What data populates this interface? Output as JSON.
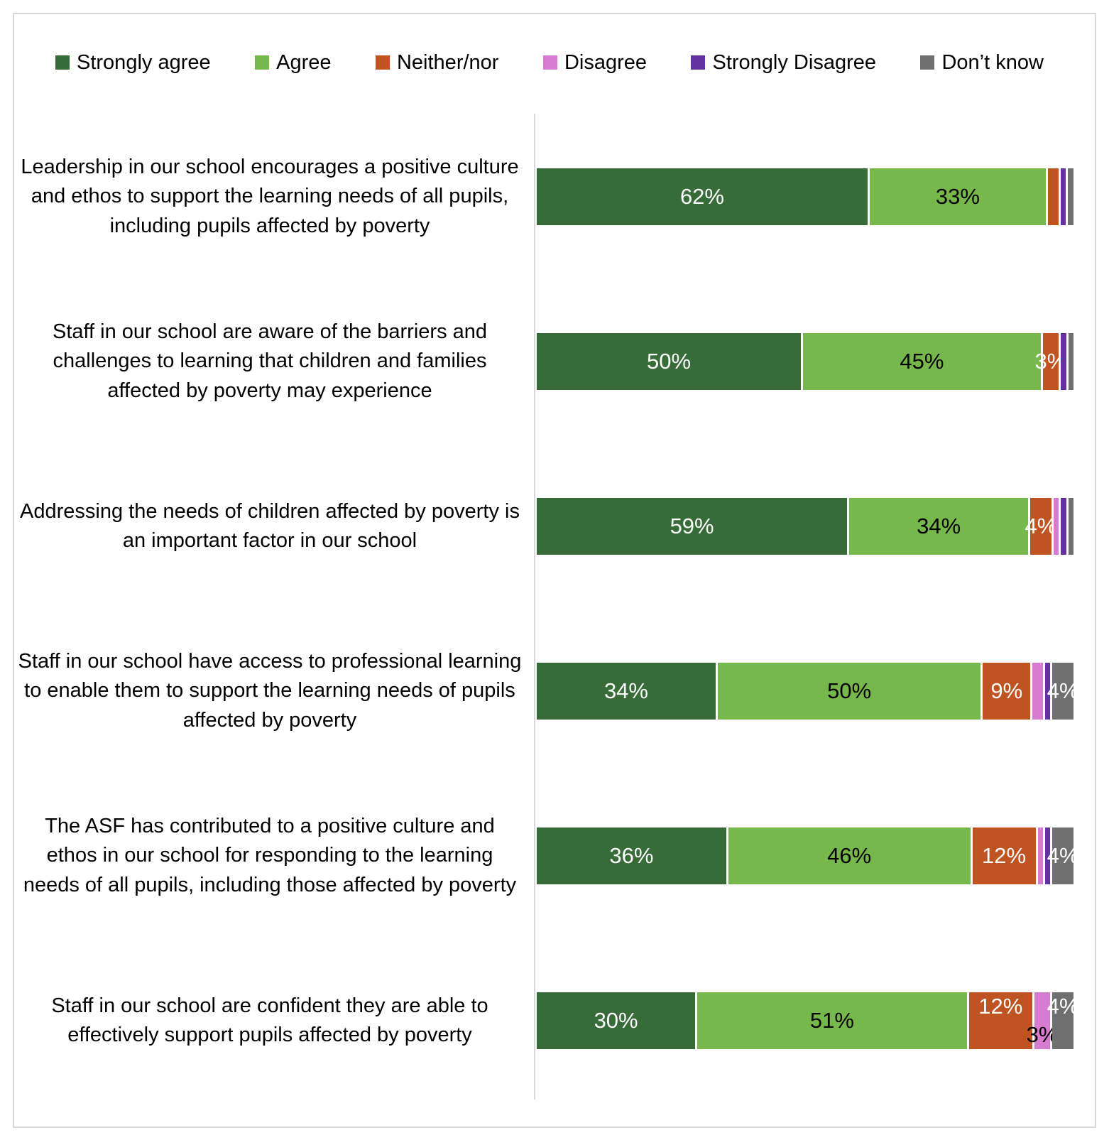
{
  "colors": {
    "strongly_agree": "#376C38",
    "agree": "#77B84D",
    "neither_nor": "#BF5322",
    "disagree": "#D77BD0",
    "strongly_disagree": "#6432A0",
    "dont_know": "#6F6F6F",
    "axis_line": "#D9D9D9",
    "frame_border": "#D8D8D8"
  },
  "label_colors": {
    "strongly_agree": "#FFFFFF",
    "agree": "#000000",
    "neither_nor": "#FFFFFF",
    "disagree": "#000000",
    "strongly_disagree": "#FFFFFF",
    "dont_know": "#FFFFFF"
  },
  "legend": [
    {
      "key": "strongly_agree",
      "label": "Strongly agree"
    },
    {
      "key": "agree",
      "label": "Agree"
    },
    {
      "key": "neither_nor",
      "label": "Neither/nor"
    },
    {
      "key": "disagree",
      "label": "Disagree"
    },
    {
      "key": "strongly_disagree",
      "label": "Strongly Disagree"
    },
    {
      "key": "dont_know",
      "label": "Don’t know"
    }
  ],
  "chart_data": {
    "type": "bar",
    "orientation": "horizontal-stacked",
    "unit": "%",
    "xlim": [
      0,
      100
    ],
    "grid": false,
    "legend_position": "top",
    "title": "",
    "xlabel": "",
    "ylabel": "",
    "categories": [
      "Leadership in our school encourages a positive culture and ethos to support the learning needs of all pupils, including pupils affected by poverty",
      "Staff in our school are aware of the barriers and challenges to learning that children and families affected by poverty may experience",
      "Addressing the needs of children affected by poverty is an important factor in our school",
      "Staff in our school have access to professional learning to enable them to support the learning needs of pupils affected by poverty",
      "The ASF has contributed to a positive culture and ethos in our school for responding to the learning needs of all pupils, including those affected by poverty",
      "Staff in our school are confident they are able to effectively support pupils affected by poverty"
    ],
    "series": [
      {
        "name": "Strongly agree",
        "values": [
          62,
          50,
          59,
          34,
          36,
          30
        ]
      },
      {
        "name": "Agree",
        "values": [
          33,
          45,
          34,
          50,
          46,
          51
        ]
      },
      {
        "name": "Neither/nor",
        "values": [
          2,
          3,
          4,
          9,
          12,
          12
        ]
      },
      {
        "name": "Disagree",
        "values": [
          0,
          0,
          1,
          2,
          1,
          3
        ]
      },
      {
        "name": "Strongly Disagree",
        "values": [
          1,
          1,
          1,
          1,
          1,
          0
        ]
      },
      {
        "name": "Don’t know",
        "values": [
          1,
          1,
          1,
          4,
          4,
          4
        ]
      }
    ]
  },
  "rows": [
    {
      "segments": [
        {
          "key": "strongly_agree",
          "value": 62,
          "label": "62%"
        },
        {
          "key": "agree",
          "value": 33,
          "label": "33%"
        },
        {
          "key": "neither_nor",
          "value": 2
        },
        {
          "key": "strongly_disagree",
          "value": 1
        },
        {
          "key": "dont_know",
          "value": 1
        }
      ]
    },
    {
      "segments": [
        {
          "key": "strongly_agree",
          "value": 50,
          "label": "50%"
        },
        {
          "key": "agree",
          "value": 45,
          "label": "45%"
        },
        {
          "key": "neither_nor",
          "value": 3,
          "label": "3%"
        },
        {
          "key": "strongly_disagree",
          "value": 1
        },
        {
          "key": "dont_know",
          "value": 1
        }
      ]
    },
    {
      "segments": [
        {
          "key": "strongly_agree",
          "value": 59,
          "label": "59%"
        },
        {
          "key": "agree",
          "value": 34,
          "label": "34%"
        },
        {
          "key": "neither_nor",
          "value": 4,
          "label": "4%"
        },
        {
          "key": "disagree",
          "value": 1
        },
        {
          "key": "strongly_disagree",
          "value": 1
        },
        {
          "key": "dont_know",
          "value": 1
        }
      ]
    },
    {
      "segments": [
        {
          "key": "strongly_agree",
          "value": 34,
          "label": "34%"
        },
        {
          "key": "agree",
          "value": 50,
          "label": "50%"
        },
        {
          "key": "neither_nor",
          "value": 9,
          "label": "9%"
        },
        {
          "key": "disagree",
          "value": 2
        },
        {
          "key": "strongly_disagree",
          "value": 1
        },
        {
          "key": "dont_know",
          "value": 4,
          "label": "4%"
        }
      ]
    },
    {
      "segments": [
        {
          "key": "strongly_agree",
          "value": 36,
          "label": "36%"
        },
        {
          "key": "agree",
          "value": 46,
          "label": "46%"
        },
        {
          "key": "neither_nor",
          "value": 12,
          "label": "12%"
        },
        {
          "key": "disagree",
          "value": 1
        },
        {
          "key": "strongly_disagree",
          "value": 1
        },
        {
          "key": "dont_know",
          "value": 4,
          "label": "4%"
        }
      ]
    },
    {
      "segments": [
        {
          "key": "strongly_agree",
          "value": 30,
          "label": "30%"
        },
        {
          "key": "agree",
          "value": 51,
          "label": "51%"
        },
        {
          "key": "neither_nor",
          "value": 12,
          "label": "12%",
          "dy": -20
        },
        {
          "key": "disagree",
          "value": 3,
          "label": "3%",
          "dy": 20
        },
        {
          "key": "dont_know",
          "value": 4,
          "label": "4%",
          "dy": -20
        }
      ]
    }
  ]
}
